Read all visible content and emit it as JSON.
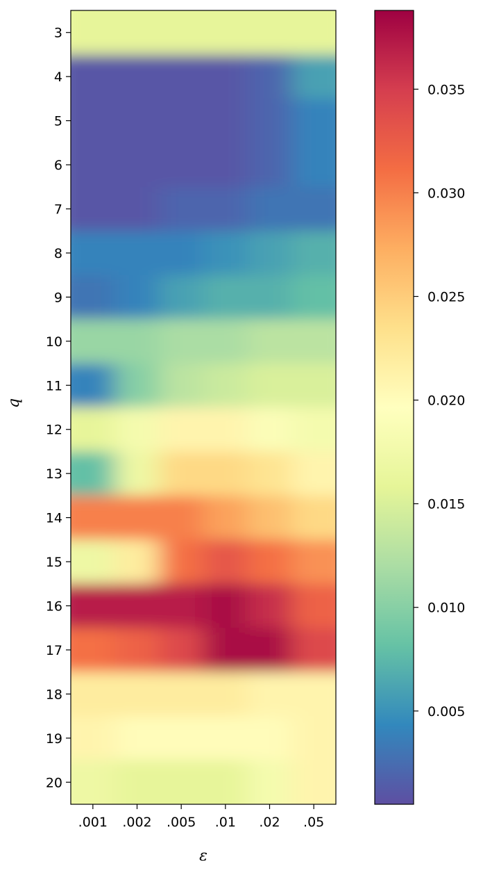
{
  "chart_data": {
    "type": "heatmap",
    "title": "",
    "xlabel": "ε",
    "ylabel": "q",
    "x_categories": [
      ".001",
      ".002",
      ".005",
      ".01",
      ".02",
      ".05"
    ],
    "y_categories": [
      "3",
      "4",
      "5",
      "6",
      "7",
      "8",
      "9",
      "10",
      "11",
      "12",
      "13",
      "14",
      "15",
      "16",
      "17",
      "18",
      "19",
      "20"
    ],
    "values": [
      [
        0.016,
        0.016,
        0.016,
        0.016,
        0.016,
        0.016
      ],
      [
        0.001,
        0.001,
        0.001,
        0.001,
        0.002,
        0.006
      ],
      [
        0.001,
        0.001,
        0.001,
        0.001,
        0.002,
        0.004
      ],
      [
        0.001,
        0.001,
        0.001,
        0.001,
        0.002,
        0.004
      ],
      [
        0.001,
        0.001,
        0.002,
        0.002,
        0.003,
        0.003
      ],
      [
        0.004,
        0.004,
        0.004,
        0.005,
        0.006,
        0.007
      ],
      [
        0.003,
        0.004,
        0.006,
        0.007,
        0.007,
        0.008
      ],
      [
        0.011,
        0.011,
        0.012,
        0.012,
        0.013,
        0.013
      ],
      [
        0.004,
        0.01,
        0.013,
        0.014,
        0.015,
        0.015
      ],
      [
        0.016,
        0.018,
        0.021,
        0.021,
        0.019,
        0.018
      ],
      [
        0.008,
        0.017,
        0.024,
        0.024,
        0.023,
        0.021
      ],
      [
        0.03,
        0.03,
        0.03,
        0.028,
        0.026,
        0.024
      ],
      [
        0.017,
        0.022,
        0.031,
        0.033,
        0.031,
        0.029
      ],
      [
        0.037,
        0.037,
        0.037,
        0.038,
        0.036,
        0.032
      ],
      [
        0.031,
        0.032,
        0.034,
        0.038,
        0.038,
        0.034
      ],
      [
        0.022,
        0.022,
        0.022,
        0.022,
        0.021,
        0.021
      ],
      [
        0.021,
        0.02,
        0.02,
        0.02,
        0.02,
        0.021
      ],
      [
        0.017,
        0.016,
        0.016,
        0.016,
        0.018,
        0.021
      ]
    ],
    "colorbar": {
      "colormap": "Spectral_r",
      "min": 0.0005,
      "max": 0.0388,
      "ticks": [
        0.005,
        0.01,
        0.015,
        0.02,
        0.025,
        0.03,
        0.035
      ],
      "tick_labels": [
        "0.005",
        "0.010",
        "0.015",
        "0.020",
        "0.025",
        "0.030",
        "0.035"
      ]
    },
    "grid": false,
    "interpolation": "smooth"
  }
}
